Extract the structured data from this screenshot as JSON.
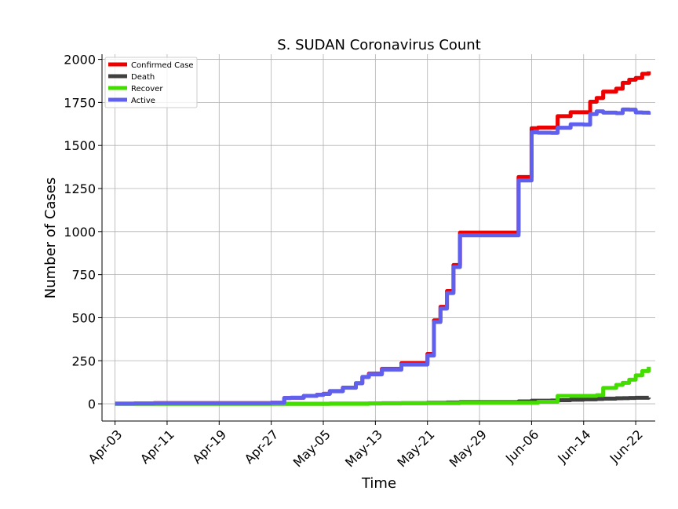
{
  "chart_data": {
    "type": "line",
    "title": "S. SUDAN Coronavirus Count",
    "xlabel": "Time",
    "ylabel": "Number of Cases",
    "x_dates": [
      "2020-04-03",
      "2020-04-06",
      "2020-04-09",
      "2020-04-12",
      "2020-04-15",
      "2020-04-18",
      "2020-04-21",
      "2020-04-24",
      "2020-04-27",
      "2020-04-29",
      "2020-04-30",
      "2020-05-02",
      "2020-05-04",
      "2020-05-05",
      "2020-05-06",
      "2020-05-08",
      "2020-05-10",
      "2020-05-11",
      "2020-05-12",
      "2020-05-14",
      "2020-05-17",
      "2020-05-21",
      "2020-05-22",
      "2020-05-23",
      "2020-05-24",
      "2020-05-25",
      "2020-05-26",
      "2020-05-27",
      "2020-05-28",
      "2020-06-03",
      "2020-06-04",
      "2020-06-06",
      "2020-06-07",
      "2020-06-09",
      "2020-06-10",
      "2020-06-12",
      "2020-06-14",
      "2020-06-15",
      "2020-06-16",
      "2020-06-17",
      "2020-06-19",
      "2020-06-20",
      "2020-06-21",
      "2020-06-22",
      "2020-06-23",
      "2020-06-24"
    ],
    "series": [
      {
        "name": "Confirmed Case",
        "color": "#ee0000",
        "values": [
          1,
          2,
          4,
          4,
          4,
          4,
          4,
          4,
          6,
          34,
          35,
          46,
          52,
          58,
          74,
          94,
          120,
          156,
          175,
          203,
          236,
          290,
          485,
          563,
          655,
          806,
          994,
          994,
          994,
          994,
          1317,
          1600,
          1604,
          1604,
          1670,
          1693,
          1693,
          1754,
          1776,
          1813,
          1830,
          1864,
          1882,
          1892,
          1916,
          1930
        ]
      },
      {
        "name": "Death",
        "color": "#404040",
        "values": [
          0,
          0,
          0,
          0,
          0,
          0,
          0,
          0,
          0,
          0,
          0,
          0,
          0,
          0,
          1,
          1,
          1,
          1,
          2,
          3,
          4,
          6,
          6,
          6,
          8,
          8,
          10,
          10,
          10,
          10,
          14,
          18,
          18,
          19,
          21,
          24,
          26,
          26,
          28,
          30,
          32,
          33,
          34,
          35,
          35,
          36
        ]
      },
      {
        "name": "Recover",
        "color": "#44dd00",
        "values": [
          0,
          0,
          0,
          0,
          0,
          0,
          0,
          0,
          0,
          0,
          0,
          0,
          0,
          0,
          0,
          0,
          0,
          0,
          2,
          2,
          4,
          4,
          4,
          4,
          4,
          4,
          6,
          6,
          6,
          6,
          6,
          6,
          12,
          12,
          46,
          46,
          46,
          46,
          50,
          92,
          110,
          122,
          140,
          165,
          190,
          215
        ]
      },
      {
        "name": "Active",
        "color": "#6060ee",
        "values": [
          1,
          2,
          4,
          4,
          4,
          4,
          4,
          4,
          6,
          34,
          35,
          46,
          52,
          58,
          73,
          93,
          119,
          155,
          171,
          198,
          228,
          280,
          475,
          553,
          643,
          794,
          978,
          978,
          978,
          978,
          1297,
          1576,
          1574,
          1573,
          1603,
          1623,
          1621,
          1682,
          1698,
          1691,
          1688,
          1709,
          1708,
          1692,
          1691,
          1679
        ]
      }
    ],
    "x_tick_labels": [
      "Apr-03",
      "Apr-11",
      "Apr-19",
      "Apr-27",
      "May-05",
      "May-13",
      "May-21",
      "May-29",
      "Jun-06",
      "Jun-14",
      "Jun-22"
    ],
    "y_ticks": [
      0,
      250,
      500,
      750,
      1000,
      1250,
      1500,
      1750,
      2000
    ],
    "ylim": [
      -100,
      2030
    ],
    "xlim": [
      "2020-04-01",
      "2020-06-25"
    ],
    "grid": true,
    "legend_position": "top-left"
  }
}
